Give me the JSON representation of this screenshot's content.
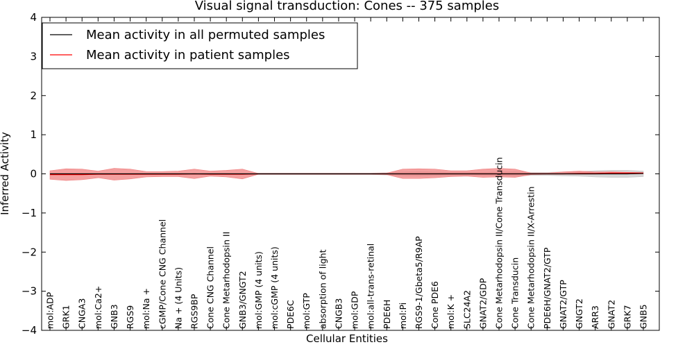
{
  "chart_data": {
    "type": "line",
    "title": "Visual signal transduction: Cones -- 375 samples",
    "xlabel": "Cellular Entities",
    "ylabel": "Inferred Activity",
    "ylim": [
      -4,
      4
    ],
    "yticks": [
      -4,
      -3,
      -2,
      -1,
      0,
      1,
      2,
      3,
      4
    ],
    "grid": false,
    "legend_position": "top-left",
    "categories": [
      "mol:ADP",
      "GRK1",
      "CNGA3",
      "mol:Ca2+",
      "GNB3",
      "RGS9",
      "mol:Na +",
      "cGMP/Cone CNG Channel",
      "Na + (4 Units)",
      "RGS9BP",
      "Cone CNG Channel",
      "Cone Metarhodopsin II",
      "GNB3/GNGT2",
      "mol:GMP (4 units)",
      "mol:cGMP (4 units)",
      "PDE6C",
      "mol:GTP",
      "absorption of light",
      "CNGB3",
      "mol:GDP",
      "mol:all-trans-retinal",
      "PDE6H",
      "mol:Pi",
      "RGS9-1/Gbeta5/R9AP",
      "Cone PDE6",
      "mol:K +",
      "SLC24A2",
      "GNAT2/GDP",
      "Cone Metarhodopsin II/Cone Transducin",
      "Cone Transducin",
      "Cone Metarhodopsin II/X-Arrestin",
      "PDE6H/GNAT2/GTP",
      "GNAT2/GTP",
      "GNGT2",
      "ARR3",
      "GNAT2",
      "GRK7",
      "GNB5"
    ],
    "series": [
      {
        "name": "Mean activity in all permuted samples",
        "color": "#000000",
        "values": [
          0,
          0,
          0,
          0,
          0,
          0,
          0,
          0,
          0,
          0,
          0,
          0,
          0,
          0,
          0,
          0,
          0,
          0,
          0,
          0,
          0,
          0,
          0,
          0,
          0,
          0,
          0,
          0,
          0,
          0,
          0,
          0,
          0,
          0,
          0,
          0,
          0,
          0.01
        ],
        "band_lower": [
          -0.02,
          -0.02,
          -0.02,
          -0.02,
          -0.02,
          -0.02,
          -0.02,
          -0.02,
          -0.02,
          -0.02,
          -0.02,
          -0.02,
          -0.02,
          -0.02,
          -0.02,
          -0.02,
          -0.02,
          -0.02,
          -0.02,
          -0.02,
          -0.02,
          -0.03,
          -0.05,
          -0.06,
          -0.05,
          -0.04,
          -0.04,
          -0.04,
          -0.05,
          -0.06,
          -0.04,
          -0.04,
          -0.05,
          -0.06,
          -0.08,
          -0.09,
          -0.09,
          -0.07
        ],
        "band_upper": [
          0.02,
          0.02,
          0.02,
          0.02,
          0.02,
          0.02,
          0.02,
          0.02,
          0.02,
          0.02,
          0.02,
          0.02,
          0.02,
          0.02,
          0.02,
          0.02,
          0.02,
          0.02,
          0.02,
          0.02,
          0.02,
          0.03,
          0.05,
          0.06,
          0.05,
          0.04,
          0.04,
          0.04,
          0.05,
          0.06,
          0.04,
          0.04,
          0.05,
          0.06,
          0.08,
          0.09,
          0.09,
          0.07
        ],
        "band_color": "#c8c8c8"
      },
      {
        "name": "Mean activity in patient samples",
        "color": "#ff0000",
        "values": [
          -0.02,
          -0.02,
          -0.02,
          -0.01,
          -0.01,
          -0.01,
          -0.01,
          -0.01,
          -0.01,
          0,
          -0.01,
          -0.01,
          -0.01,
          0,
          0,
          0,
          0,
          0,
          0,
          0,
          0,
          0,
          0,
          0,
          0,
          0,
          0,
          0,
          0,
          0,
          0,
          0,
          0,
          0.01,
          0.01,
          0.02,
          0.02,
          0.02
        ],
        "band_lower": [
          -0.14,
          -0.17,
          -0.15,
          -0.1,
          -0.16,
          -0.13,
          -0.08,
          -0.07,
          -0.07,
          -0.12,
          -0.06,
          -0.08,
          -0.13,
          -0.01,
          -0.01,
          -0.01,
          -0.01,
          -0.01,
          -0.01,
          -0.01,
          -0.01,
          -0.02,
          -0.12,
          -0.12,
          -0.1,
          -0.07,
          -0.06,
          -0.09,
          -0.08,
          -0.09,
          -0.02,
          -0.01,
          -0.01,
          -0.01,
          -0.01,
          0,
          0,
          0
        ],
        "band_upper": [
          0.08,
          0.13,
          0.12,
          0.07,
          0.14,
          0.12,
          0.06,
          0.06,
          0.07,
          0.12,
          0.07,
          0.09,
          0.12,
          0.01,
          0.01,
          0.01,
          0.01,
          0.01,
          0.01,
          0.01,
          0.01,
          0.02,
          0.12,
          0.13,
          0.12,
          0.08,
          0.08,
          0.12,
          0.14,
          0.12,
          0.02,
          0.02,
          0.05,
          0.07,
          0.05,
          0.05,
          0.04,
          0.03
        ],
        "band_color": "#f08080"
      }
    ]
  }
}
